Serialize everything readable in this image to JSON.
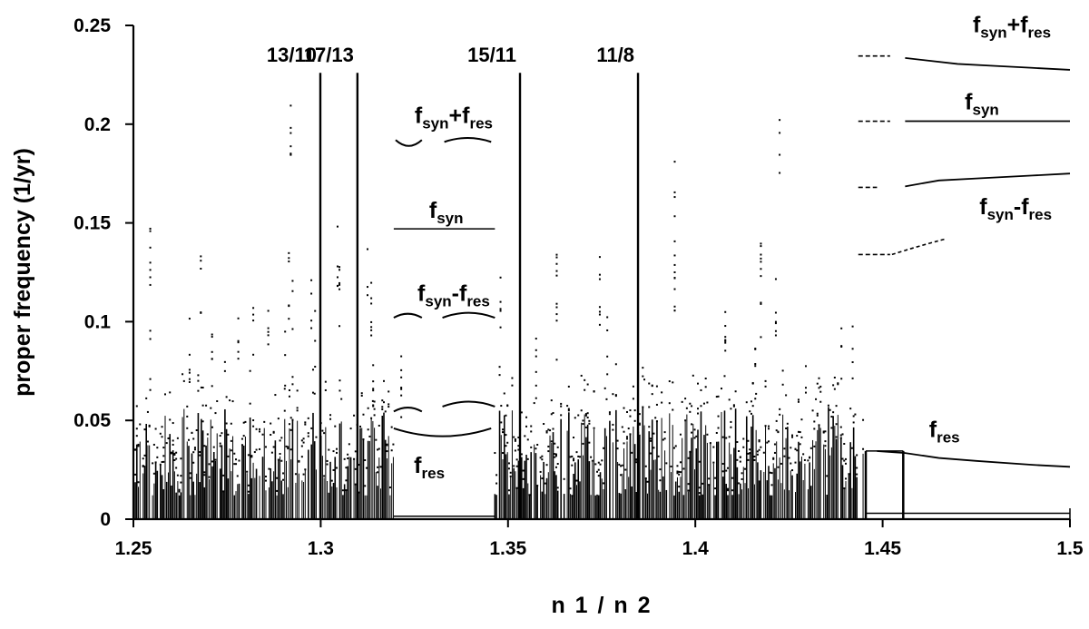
{
  "chart_data": {
    "type": "scatter",
    "title": "",
    "xlabel": "n 1 / n 2",
    "ylabel": "proper frequency (1/yr)",
    "xlim": [
      1.25,
      1.5
    ],
    "ylim": [
      0,
      0.25
    ],
    "xticks": [
      1.25,
      1.3,
      1.35,
      1.4,
      1.45,
      1.5
    ],
    "xtick_labels": [
      "1.25",
      "1.3",
      "1.35",
      "1.4",
      "1.45",
      "1.5"
    ],
    "yticks": [
      0,
      0.05,
      0.1,
      0.15,
      0.2,
      0.25
    ],
    "ytick_labels": [
      "0",
      "0.05",
      "0.1",
      "0.15",
      "0.2",
      "0.25"
    ],
    "grid": false,
    "resonances": [
      {
        "label": "13/10",
        "x": 1.2999
      },
      {
        "label": "17/13",
        "x": 1.3098
      },
      {
        "label": "15/11",
        "x": 1.3532
      },
      {
        "label": "11/8",
        "x": 1.3847
      }
    ],
    "series": [
      {
        "label": {
          "main": "f",
          "sub": "syn",
          "op": "+",
          "main2": "f",
          "sub2": "res"
        },
        "arcs": [
          {
            "x0": 1.32,
            "x1": 1.327,
            "y": 0.192,
            "dy": -0.003
          },
          {
            "x0": 1.333,
            "x1": 1.3455,
            "y": 0.191,
            "dy": 0.002
          }
        ],
        "label_at": [
          1.3355,
          0.2005
        ]
      },
      {
        "label": {
          "main": "f",
          "sub": "syn"
        },
        "segment": {
          "x0": 1.3195,
          "x1": 1.3465,
          "y": 0.147
        },
        "label_at": [
          1.3335,
          0.1525
        ]
      },
      {
        "label": {
          "main": "f",
          "sub": "syn",
          "op": "-",
          "main2": "f",
          "sub2": "res"
        },
        "arcs": [
          {
            "x0": 1.3195,
            "x1": 1.327,
            "y": 0.102,
            "dy": 0.002
          },
          {
            "x0": 1.3325,
            "x1": 1.3465,
            "y": 0.102,
            "dy": 0.0025
          }
        ],
        "label_at": [
          1.3355,
          0.1105
        ]
      },
      {
        "label": {
          "main": "f",
          "sub": "res"
        },
        "arcs": [
          {
            "x0": 1.3195,
            "x1": 1.3455,
            "y": 0.046,
            "dy": -0.004
          },
          {
            "x0": 1.3195,
            "x1": 1.327,
            "y": 0.0545,
            "dy": 0.002
          },
          {
            "x0": 1.3325,
            "x1": 1.3465,
            "y": 0.057,
            "dy": 0.0025
          }
        ],
        "label_at": [
          1.329,
          0.0235
        ]
      }
    ],
    "right_region": {
      "x_start": 1.4455,
      "labels": [
        {
          "main": "f",
          "sub": "syn",
          "op": "+",
          "main2": "f",
          "sub2": "res",
          "at": [
            1.4845,
            0.2465
          ]
        },
        {
          "main": "f",
          "sub": "syn",
          "at": [
            1.4765,
            0.2075
          ]
        },
        {
          "main": "f",
          "sub": "syn",
          "op": "-",
          "main2": "f",
          "sub2": "res",
          "at": [
            1.4855,
            0.1545
          ]
        },
        {
          "main": "f",
          "sub": "res",
          "at": [
            1.4665,
            0.0415
          ]
        }
      ],
      "curves": [
        {
          "name": "fsyn+fres",
          "x": [
            1.456,
            1.47,
            1.48,
            1.49,
            1.5
          ],
          "y": [
            0.2335,
            0.2305,
            0.2295,
            0.2285,
            0.2275
          ]
        },
        {
          "name": "fsyn",
          "x": [
            1.456,
            1.5
          ],
          "y": [
            0.2015,
            0.2015
          ]
        },
        {
          "name": "fsyn-fres",
          "x": [
            1.456,
            1.465,
            1.475,
            1.49,
            1.5
          ],
          "y": [
            0.1685,
            0.1715,
            0.1725,
            0.174,
            0.175
          ]
        },
        {
          "name": "fres",
          "x": [
            1.4485,
            1.456,
            1.465,
            1.475,
            1.49,
            1.5
          ],
          "y": [
            0.0345,
            0.0335,
            0.031,
            0.0295,
            0.0275,
            0.0265
          ]
        }
      ]
    }
  }
}
